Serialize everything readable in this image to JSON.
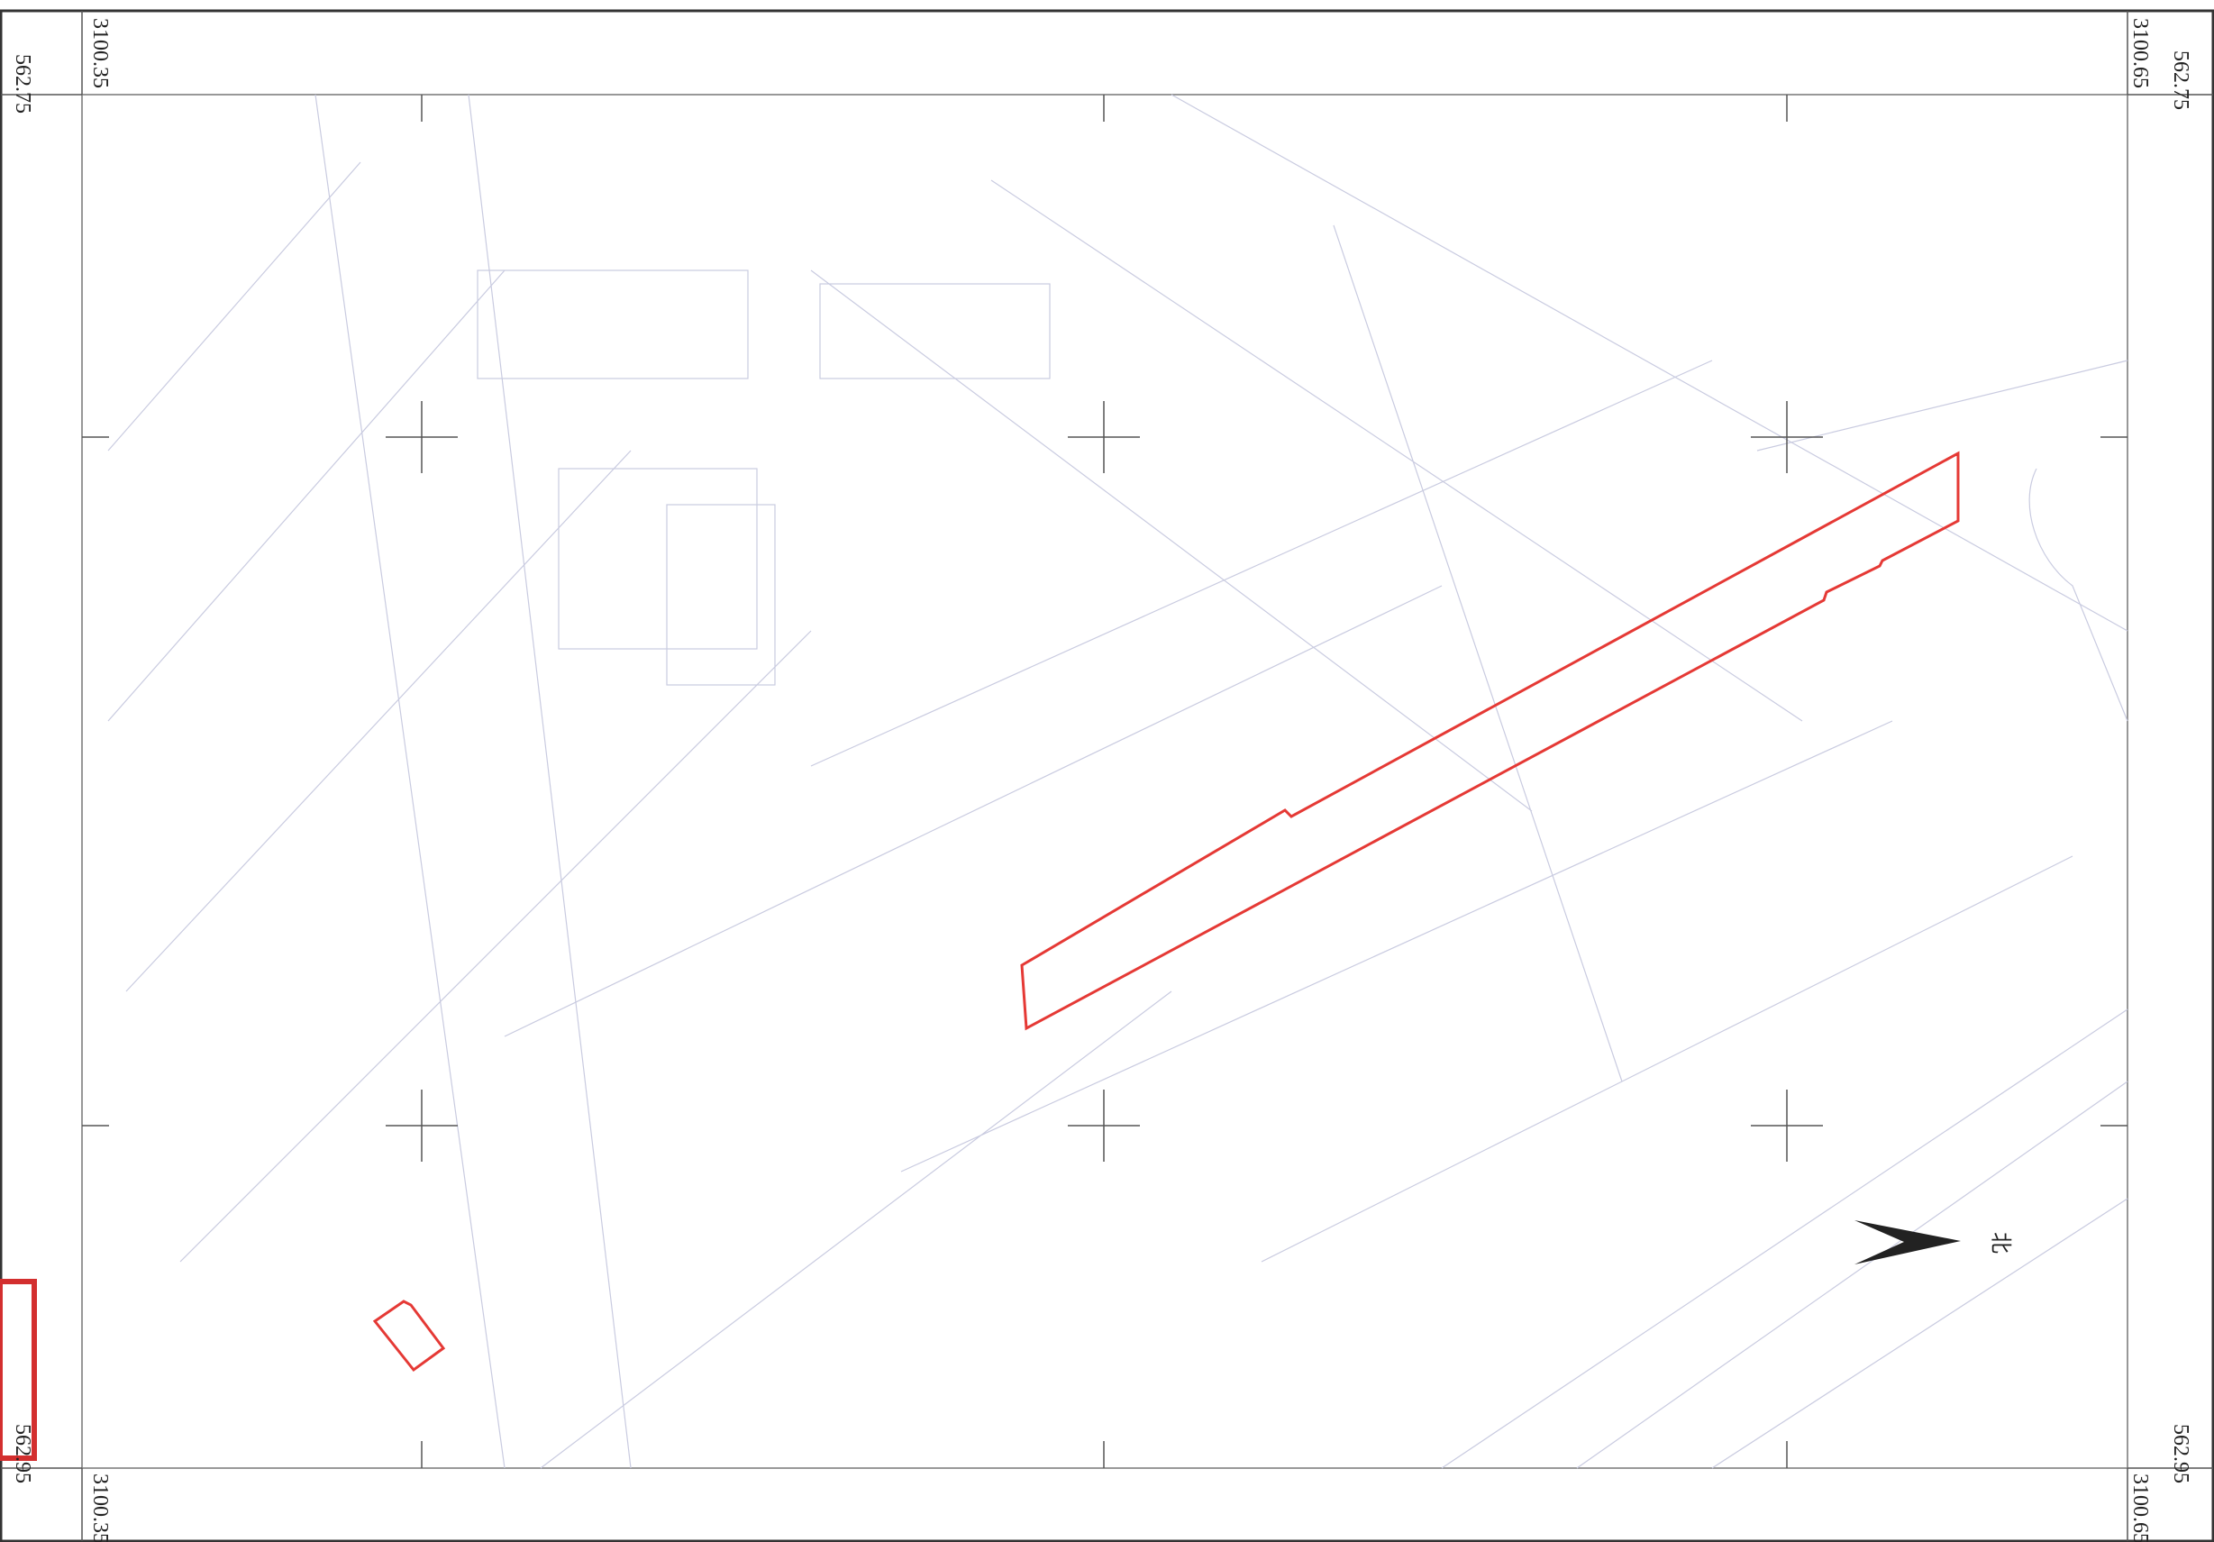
{
  "frame_labels": {
    "top_left_x": "3100.35",
    "top_left_y": "562.75",
    "top_right_x": "3100.65",
    "top_right_y": "562.75",
    "bottom_left_x": "3100.35",
    "bottom_left_y": "562.95",
    "bottom_right_x": "3100.65",
    "bottom_right_y": "562.95"
  },
  "north_label": "北"
}
